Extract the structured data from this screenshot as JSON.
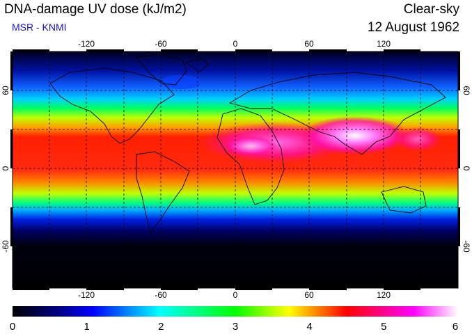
{
  "header": {
    "title": "DNA-damage UV dose (kJ/m2)",
    "source": "MSR - KNMI",
    "mode": "Clear-sky",
    "date": "12 August 1962"
  },
  "map": {
    "lon_ticks": [
      "-120",
      "-60",
      "0",
      "60",
      "120"
    ],
    "lat_ticks": [
      "60",
      "0",
      "-60"
    ],
    "frame_color": "#000000",
    "grid_style": "dashed"
  },
  "colorbar": {
    "labels": [
      "0",
      "1",
      "2",
      "3",
      "4",
      "5",
      "6"
    ],
    "colors": [
      "#000000",
      "#0000ff",
      "#00ffff",
      "#00ff00",
      "#ffff00",
      "#ff0000",
      "#ff00ff",
      "#ffffff"
    ]
  }
}
